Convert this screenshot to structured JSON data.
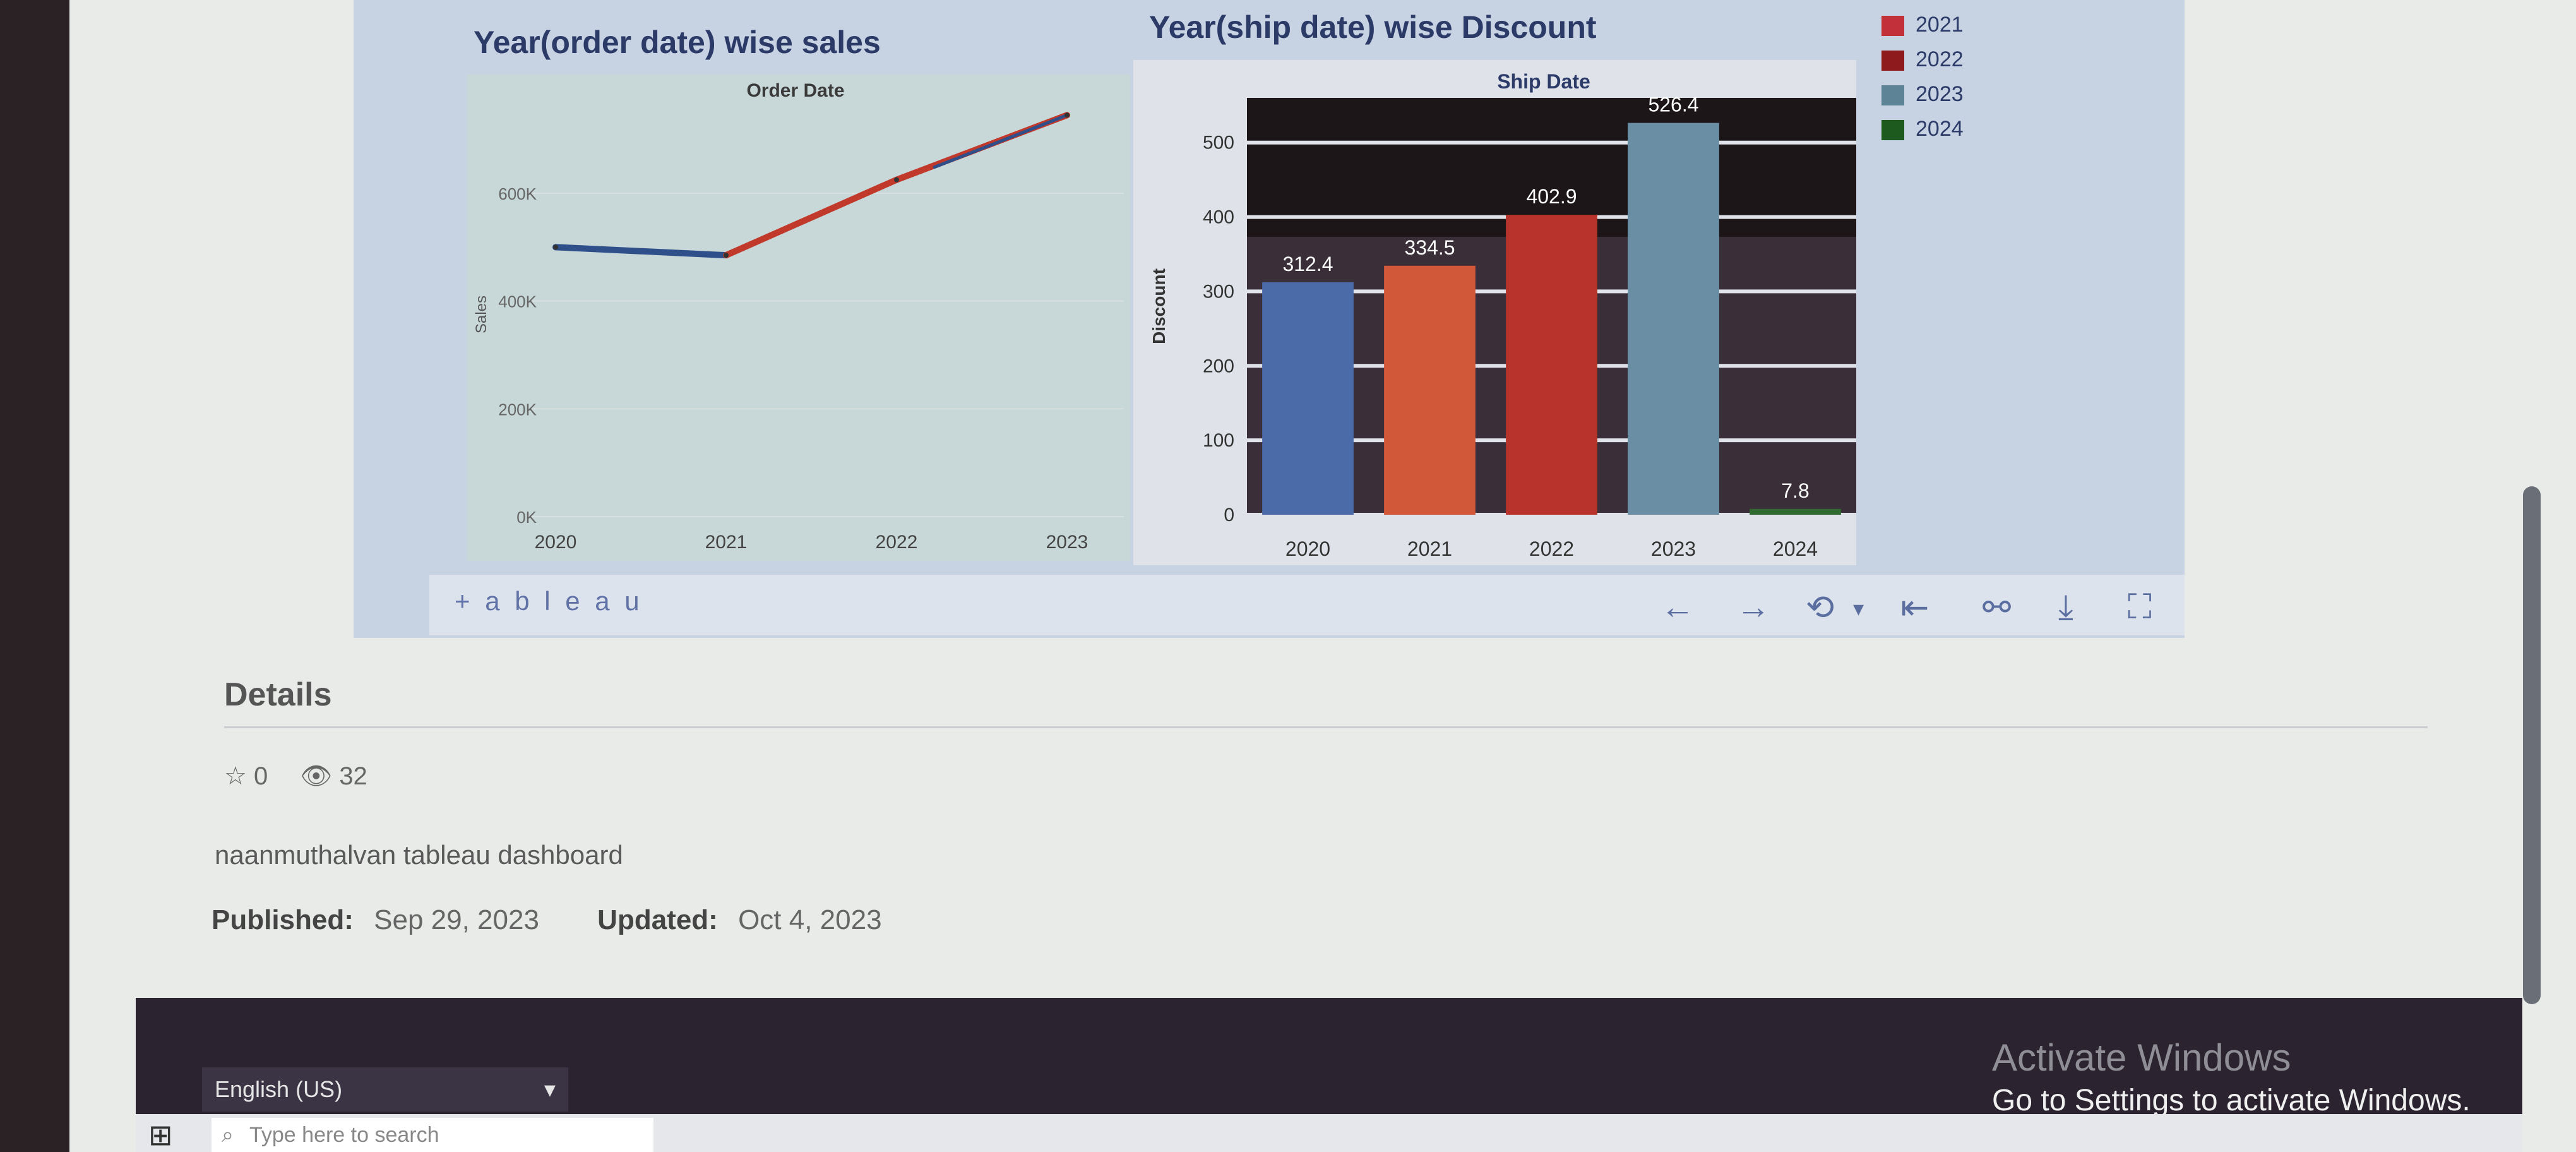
{
  "chart1": {
    "title": "Year(order date) wise sales",
    "header": "Order Date",
    "ylabel": "Sales",
    "ytick_labels": [
      "600K",
      "400K",
      "200K",
      "0K"
    ],
    "xtick_labels": [
      "2020",
      "2021",
      "2022",
      "2023"
    ]
  },
  "chart2": {
    "title": "Year(ship date) wise Discount",
    "header": "Ship Date",
    "ylabel": "Discount",
    "ytick_labels": [
      "500",
      "400",
      "300",
      "200",
      "100",
      "0"
    ],
    "xtick_labels": [
      "2020",
      "2021",
      "2022",
      "2023",
      "2024"
    ],
    "value_labels": [
      "312.4",
      "334.5",
      "402.9",
      "526.4",
      "7.8"
    ]
  },
  "chart_data": [
    {
      "type": "line",
      "title": "Year(order date) wise sales",
      "header": "Order Date",
      "ylabel": "Sales",
      "x": [
        "2020",
        "2021",
        "2022",
        "2023"
      ],
      "values": [
        500000,
        485000,
        625000,
        745000
      ],
      "ylim": [
        0,
        750000
      ],
      "colors": [
        "#2f4f8a",
        "#c0392b"
      ]
    },
    {
      "type": "bar",
      "title": "Year(ship date) wise Discount",
      "header": "Ship Date",
      "ylabel": "Discount",
      "categories": [
        "2020",
        "2021",
        "2022",
        "2023",
        "2024"
      ],
      "values": [
        312.4,
        334.5,
        402.9,
        526.4,
        7.8
      ],
      "ylim": [
        0,
        560
      ],
      "colors": [
        "#4a6aa8",
        "#d2583a",
        "#b8332c",
        "#6a8ea4",
        "#2f6a2f"
      ],
      "legend": [
        "2021",
        "2022",
        "2023",
        "2024"
      ],
      "legend_colors": [
        "#c2303a",
        "#8e1a1d",
        "#5d8396",
        "#1d5a1d"
      ]
    }
  ],
  "legend": [
    {
      "label": "2021",
      "color": "#c2303a"
    },
    {
      "label": "2022",
      "color": "#8e1a1d"
    },
    {
      "label": "2023",
      "color": "#5d8396"
    },
    {
      "label": "2024",
      "color": "#1d5a1d"
    }
  ],
  "toolbar": {
    "logo": "+ a b l e a u",
    "icons": [
      "arrow-left-icon",
      "arrow-right-icon",
      "revert-icon",
      "dropdown-icon",
      "first-page-icon",
      "share-icon",
      "download-icon",
      "fullscreen-icon"
    ]
  },
  "details": {
    "title": "Details",
    "favorites": "0",
    "views": "32",
    "description": "naanmuthalvan tableau dashboard",
    "published_label": "Published:",
    "published": "Sep 29, 2023",
    "updated_label": "Updated:",
    "updated": "Oct 4, 2023"
  },
  "footer": {
    "language": "English (US)",
    "activate_title": "Activate Windows",
    "activate_sub": "Go to Settings to activate Windows."
  },
  "taskbar": {
    "search_placeholder": "Type here to search"
  }
}
